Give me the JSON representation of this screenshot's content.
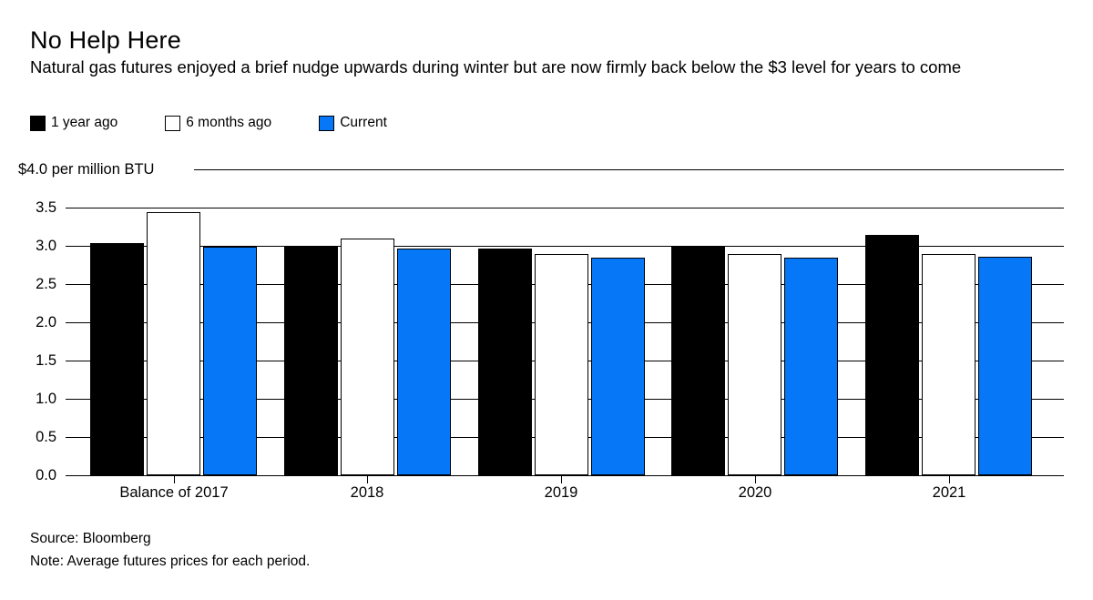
{
  "chart_data": {
    "type": "bar",
    "title": "No Help Here",
    "subtitle": "Natural gas futures enjoyed a brief nudge upwards during winter but are now firmly back below the $3 level for years to come",
    "y_axis_top_label": "$4.0 per million BTU",
    "categories": [
      "Balance of 2017",
      "2018",
      "2019",
      "2020",
      "2021"
    ],
    "series": [
      {
        "name": "1 year ago",
        "color": "#000000",
        "values": [
          3.03,
          2.99,
          2.96,
          3.0,
          3.14
        ]
      },
      {
        "name": "6 months ago",
        "color": "#ffffff",
        "values": [
          3.44,
          3.1,
          2.89,
          2.89,
          2.89
        ]
      },
      {
        "name": "Current",
        "color": "#0677f7",
        "values": [
          2.99,
          2.96,
          2.85,
          2.84,
          2.86
        ]
      }
    ],
    "ylim": [
      0,
      4.0
    ],
    "ytick_step": 0.5,
    "ytick_labels": [
      "0.0",
      "0.5",
      "1.0",
      "1.5",
      "2.0",
      "2.5",
      "3.0",
      "3.5"
    ],
    "legend_position": "top-left",
    "grid": "horizontal-black-lines",
    "axis_color": "#000000"
  },
  "footer": {
    "source": "Source: Bloomberg",
    "note": "Note: Average futures prices for each period."
  }
}
